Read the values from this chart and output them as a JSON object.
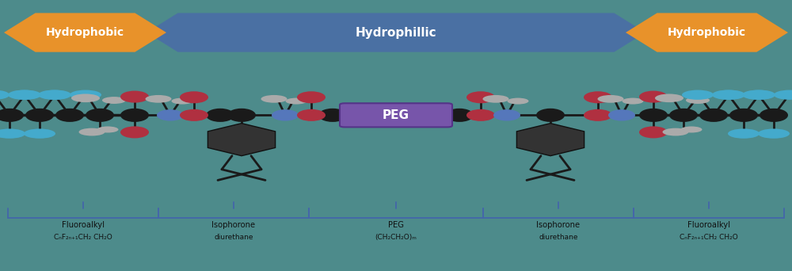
{
  "bg_color": "#4d8b8b",
  "hydrophobic_color": "#e8922a",
  "hydrophillic_color": "#4a6fa5",
  "peg_color": "#7755aa",
  "black_node": "#1a1a1a",
  "red_node": "#b03040",
  "blue_node": "#5577bb",
  "cyan_node": "#44aacc",
  "gray_node": "#aaaaaa",
  "iso_body": "#333333",
  "bracket_color": "#4466aa",
  "text_color": "#111111",
  "label_line1": [
    "Fluoroalkyl",
    "Isophorone",
    "PEG",
    "Isophorone",
    "Fluoroalkyl"
  ],
  "label_line2": [
    "CₙF₂ₙ₊₁CH₂ CH₂O",
    "diurethane",
    "(CH₂CH₂O)ₘ",
    "diurethane",
    "CₙF₂ₙ₊₁CH₂ CH₂O"
  ],
  "section_centers": [
    0.105,
    0.295,
    0.5,
    0.705,
    0.895
  ],
  "section_edges": [
    0.01,
    0.2,
    0.39,
    0.61,
    0.8,
    0.99
  ]
}
